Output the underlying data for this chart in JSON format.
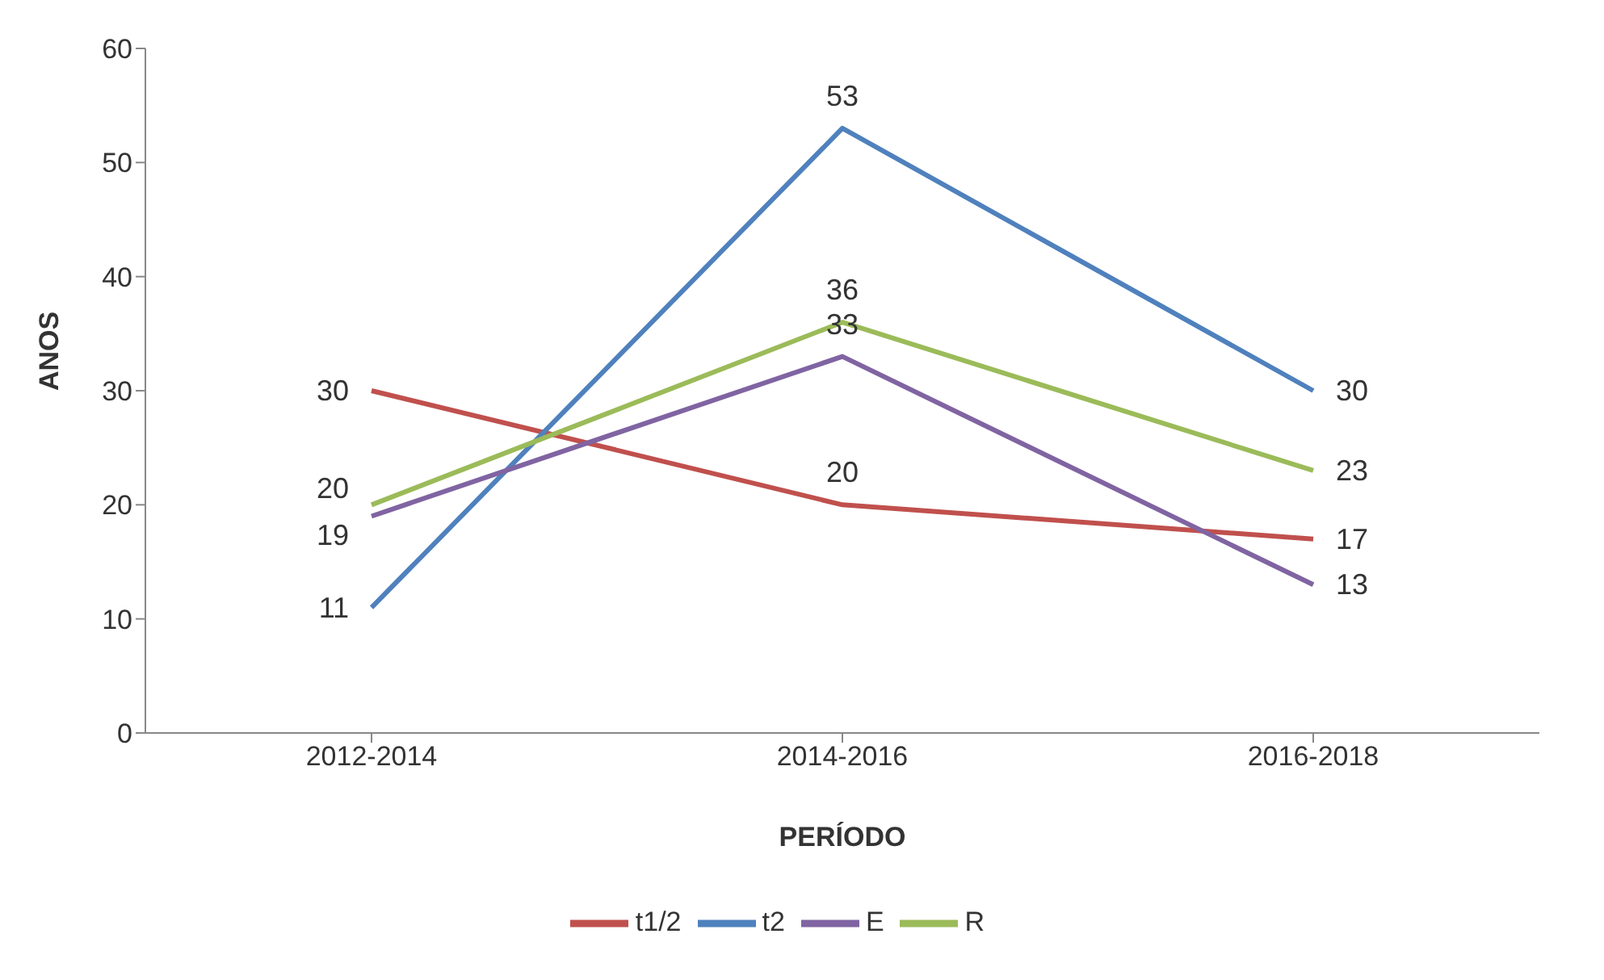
{
  "chart_data": {
    "type": "line",
    "xlabel": "PERÍODO",
    "ylabel": "ANOS",
    "categories": [
      "2012-2014",
      "2014-2016",
      "2016-2018"
    ],
    "series": [
      {
        "name": "t1/2",
        "color": "#c0504d",
        "values": [
          30,
          20,
          17
        ]
      },
      {
        "name": "t2",
        "color": "#4f81bd",
        "values": [
          11,
          53,
          30
        ]
      },
      {
        "name": "E",
        "color": "#8064a2",
        "values": [
          19,
          33,
          13
        ]
      },
      {
        "name": "R",
        "color": "#9bbb59",
        "values": [
          20,
          36,
          23
        ]
      }
    ],
    "ylim": [
      0,
      60
    ],
    "yticks": [
      0,
      10,
      20,
      30,
      40,
      50,
      60
    ],
    "grid": false,
    "legend": "bottom",
    "marker": "none",
    "line_style": "solid",
    "data_labels": true
  }
}
